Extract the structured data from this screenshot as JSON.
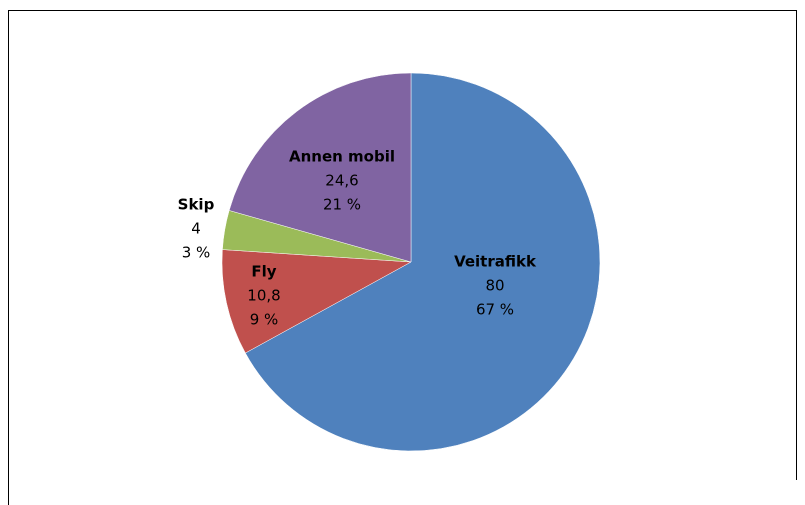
{
  "chart_data": {
    "type": "pie",
    "categories": [
      "Veitrafikk",
      "Fly",
      "Skip",
      "Annen mobil"
    ],
    "values": [
      80,
      10.8,
      4,
      24.6
    ],
    "value_labels": [
      "80",
      "10,8",
      "4",
      "24,6"
    ],
    "percents": [
      67,
      9,
      3,
      21
    ],
    "percent_labels": [
      "67 %",
      "9 %",
      "3 %",
      "21 %"
    ],
    "colors": [
      "#4f81bd",
      "#c0504d",
      "#9bbb59",
      "#8064a2"
    ]
  }
}
